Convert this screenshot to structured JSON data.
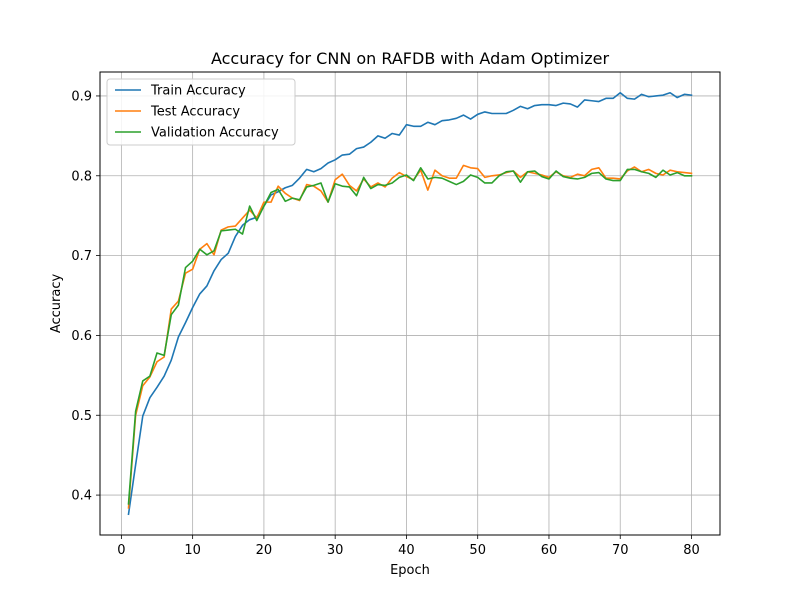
{
  "chart_data": {
    "type": "line",
    "title": "Accuracy for CNN on RAFDB with Adam Optimizer",
    "xlabel": "Epoch",
    "ylabel": "Accuracy",
    "xlim": [
      -3,
      84
    ],
    "ylim": [
      0.35,
      0.93
    ],
    "xticks": [
      0,
      10,
      20,
      30,
      40,
      50,
      60,
      70,
      80
    ],
    "yticks": [
      0.4,
      0.5,
      0.6,
      0.7,
      0.8,
      0.9
    ],
    "grid": true,
    "legend_position": "top-left",
    "x": [
      1,
      2,
      3,
      4,
      5,
      6,
      7,
      8,
      9,
      10,
      11,
      12,
      13,
      14,
      15,
      16,
      17,
      18,
      19,
      20,
      21,
      22,
      23,
      24,
      25,
      26,
      27,
      28,
      29,
      30,
      31,
      32,
      33,
      34,
      35,
      36,
      37,
      38,
      39,
      40,
      41,
      42,
      43,
      44,
      45,
      46,
      47,
      48,
      49,
      50,
      51,
      52,
      53,
      54,
      55,
      56,
      57,
      58,
      59,
      60,
      61,
      62,
      63,
      64,
      65,
      66,
      67,
      68,
      69,
      70,
      71,
      72,
      73,
      74,
      75,
      76,
      77,
      78,
      79,
      80
    ],
    "series": [
      {
        "name": "Train Accuracy",
        "color": "#1f77b4",
        "values": [
          0.376,
          0.438,
          0.499,
          0.522,
          0.535,
          0.549,
          0.569,
          0.598,
          0.616,
          0.635,
          0.652,
          0.662,
          0.681,
          0.695,
          0.703,
          0.724,
          0.738,
          0.745,
          0.748,
          0.762,
          0.776,
          0.78,
          0.785,
          0.788,
          0.797,
          0.808,
          0.805,
          0.809,
          0.816,
          0.82,
          0.826,
          0.827,
          0.834,
          0.836,
          0.842,
          0.85,
          0.847,
          0.853,
          0.851,
          0.864,
          0.862,
          0.862,
          0.867,
          0.864,
          0.869,
          0.87,
          0.872,
          0.876,
          0.871,
          0.877,
          0.88,
          0.878,
          0.878,
          0.878,
          0.882,
          0.887,
          0.884,
          0.888,
          0.889,
          0.889,
          0.888,
          0.891,
          0.89,
          0.886,
          0.895,
          0.894,
          0.893,
          0.897,
          0.897,
          0.904,
          0.897,
          0.896,
          0.902,
          0.899,
          0.9,
          0.901,
          0.904,
          0.898,
          0.902,
          0.901
        ]
      },
      {
        "name": "Test Accuracy",
        "color": "#ff7f0e",
        "values": [
          0.384,
          0.5,
          0.537,
          0.548,
          0.567,
          0.573,
          0.633,
          0.643,
          0.678,
          0.683,
          0.708,
          0.715,
          0.701,
          0.732,
          0.736,
          0.737,
          0.747,
          0.757,
          0.747,
          0.767,
          0.767,
          0.787,
          0.778,
          0.772,
          0.769,
          0.789,
          0.787,
          0.781,
          0.767,
          0.795,
          0.802,
          0.788,
          0.781,
          0.796,
          0.786,
          0.791,
          0.786,
          0.797,
          0.804,
          0.799,
          0.795,
          0.807,
          0.782,
          0.807,
          0.8,
          0.797,
          0.797,
          0.813,
          0.81,
          0.809,
          0.798,
          0.8,
          0.801,
          0.804,
          0.806,
          0.798,
          0.805,
          0.803,
          0.801,
          0.798,
          0.805,
          0.8,
          0.798,
          0.802,
          0.8,
          0.808,
          0.81,
          0.797,
          0.797,
          0.796,
          0.806,
          0.811,
          0.805,
          0.808,
          0.803,
          0.801,
          0.807,
          0.805,
          0.804,
          0.803
        ]
      },
      {
        "name": "Validation Accuracy",
        "color": "#2ca02c",
        "values": [
          0.389,
          0.505,
          0.543,
          0.549,
          0.578,
          0.575,
          0.626,
          0.638,
          0.685,
          0.693,
          0.708,
          0.701,
          0.706,
          0.731,
          0.732,
          0.733,
          0.727,
          0.762,
          0.744,
          0.762,
          0.779,
          0.783,
          0.768,
          0.772,
          0.77,
          0.786,
          0.788,
          0.791,
          0.767,
          0.79,
          0.787,
          0.786,
          0.775,
          0.798,
          0.784,
          0.789,
          0.788,
          0.791,
          0.798,
          0.801,
          0.794,
          0.81,
          0.796,
          0.798,
          0.797,
          0.793,
          0.789,
          0.793,
          0.801,
          0.798,
          0.791,
          0.791,
          0.8,
          0.805,
          0.806,
          0.792,
          0.805,
          0.806,
          0.799,
          0.796,
          0.806,
          0.799,
          0.797,
          0.796,
          0.798,
          0.803,
          0.804,
          0.796,
          0.794,
          0.794,
          0.808,
          0.808,
          0.805,
          0.803,
          0.798,
          0.807,
          0.801,
          0.804,
          0.8,
          0.8
        ]
      }
    ]
  }
}
